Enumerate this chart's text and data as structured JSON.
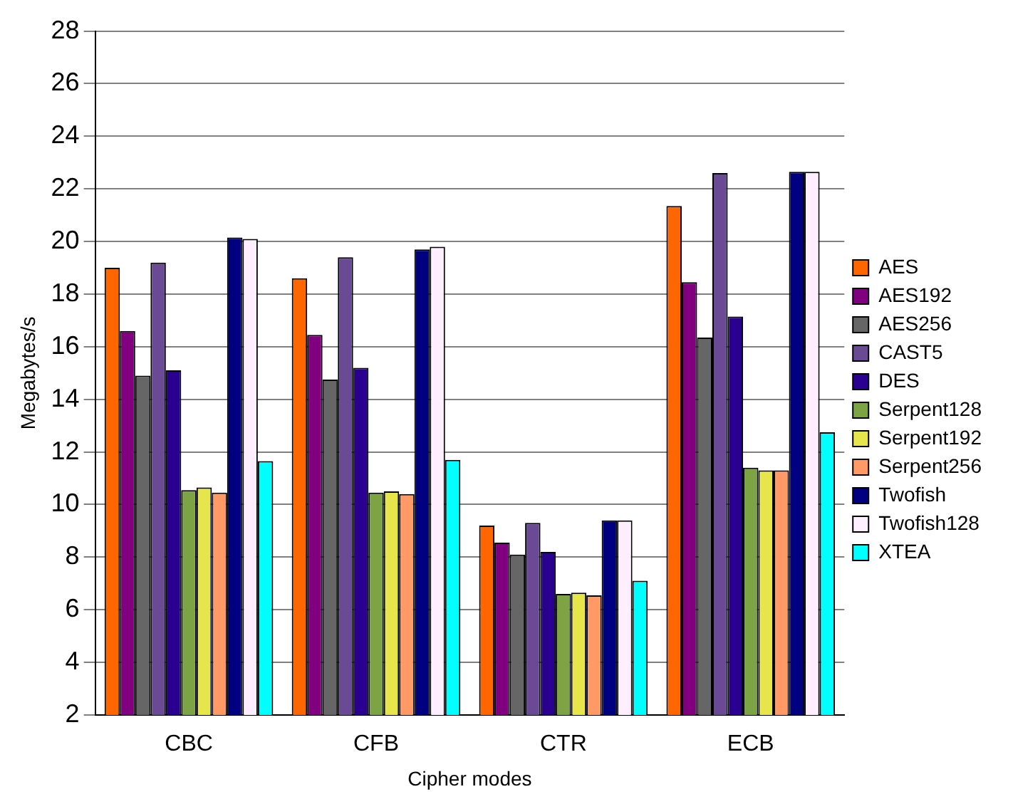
{
  "chart_data": {
    "type": "bar",
    "xlabel": "Cipher modes",
    "ylabel": "Megabytes/s",
    "categories": [
      "CBC",
      "CFB",
      "CTR",
      "ECB"
    ],
    "series": [
      {
        "name": "AES",
        "color": "#ff6600",
        "values": [
          19.0,
          18.6,
          9.2,
          21.35
        ]
      },
      {
        "name": "AES192",
        "color": "#800080",
        "values": [
          16.6,
          16.45,
          8.55,
          18.45
        ]
      },
      {
        "name": "AES256",
        "color": "#666666",
        "values": [
          14.9,
          14.75,
          8.1,
          16.35
        ]
      },
      {
        "name": "CAST5",
        "color": "#6a4a94",
        "values": [
          19.2,
          19.4,
          9.3,
          22.6
        ]
      },
      {
        "name": "DES",
        "color": "#2a0090",
        "values": [
          15.1,
          15.2,
          8.2,
          17.15
        ]
      },
      {
        "name": "Serpent128",
        "color": "#7ca444",
        "values": [
          10.55,
          10.45,
          6.6,
          11.4
        ]
      },
      {
        "name": "Serpent192",
        "color": "#e6e64c",
        "values": [
          10.65,
          10.5,
          6.65,
          11.3
        ]
      },
      {
        "name": "Serpent256",
        "color": "#ff9966",
        "values": [
          10.45,
          10.4,
          6.55,
          11.3
        ]
      },
      {
        "name": "Twofish",
        "color": "#000080",
        "values": [
          20.15,
          19.7,
          9.4,
          22.65
        ]
      },
      {
        "name": "Twofish128",
        "color": "#ffeeff",
        "values": [
          20.1,
          19.8,
          9.4,
          22.65
        ]
      },
      {
        "name": "XTEA",
        "color": "#00ffff",
        "values": [
          11.65,
          11.7,
          7.1,
          12.75
        ]
      }
    ],
    "ylim": [
      2,
      28
    ],
    "yticks": [
      2,
      4,
      6,
      8,
      10,
      12,
      14,
      16,
      18,
      20,
      22,
      24,
      26,
      28
    ],
    "grid": "y",
    "legend": "right"
  }
}
